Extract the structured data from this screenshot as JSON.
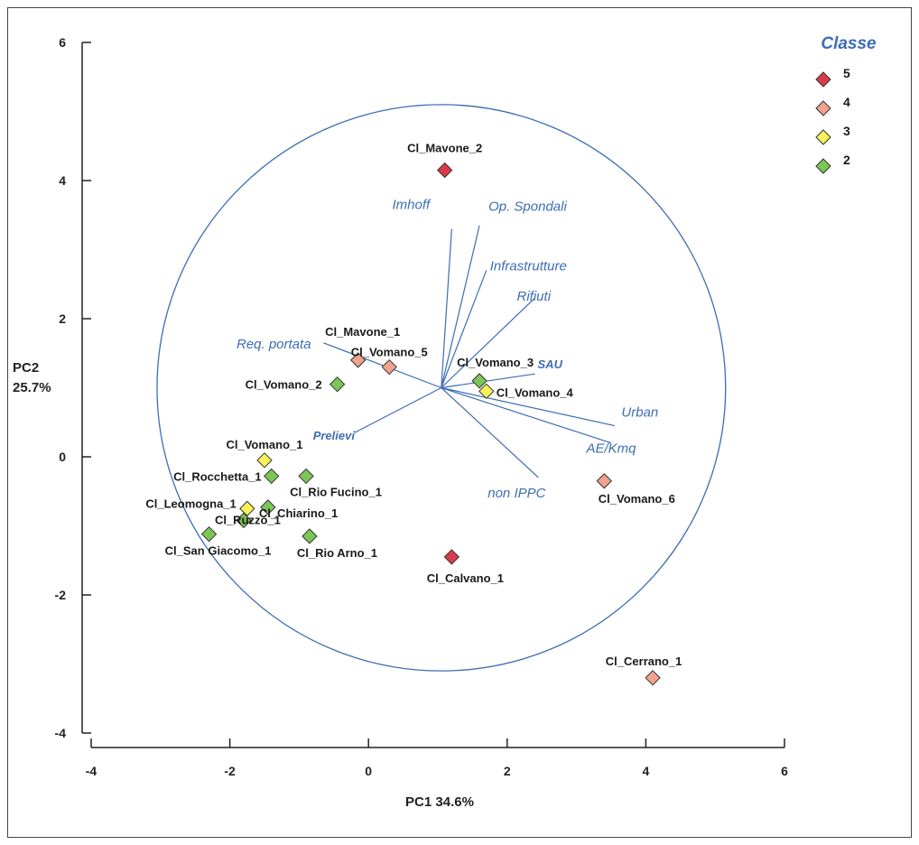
{
  "chart_data": {
    "type": "scatter",
    "title": "",
    "xlabel": "PC1 34.6%",
    "ylabel_line1": "PC2",
    "ylabel_line2": "25.7%",
    "xlim": [
      -4,
      6
    ],
    "ylim": [
      -4,
      6
    ],
    "xticks": [
      -4,
      -2,
      0,
      2,
      4,
      6
    ],
    "yticks": [
      -4,
      -2,
      0,
      2,
      4,
      6
    ],
    "grid": false,
    "legend": {
      "title": "Classe",
      "placement": "top-right",
      "entries": [
        {
          "label": "5",
          "color": "#d93a4c"
        },
        {
          "label": "4",
          "color": "#f1a18e"
        },
        {
          "label": "3",
          "color": "#f7f25a"
        },
        {
          "label": "2",
          "color": "#7cc655"
        }
      ]
    },
    "correlation_circle": {
      "center": [
        1.05,
        1.0
      ],
      "radius": 4.1
    },
    "points": [
      {
        "name": "Cl_Mavone_2",
        "x": 1.1,
        "y": 4.15,
        "classe": "5"
      },
      {
        "name": "Cl_Calvano_1",
        "x": 1.2,
        "y": -1.45,
        "classe": "5"
      },
      {
        "name": "Cl_Mavone_1",
        "x": -0.15,
        "y": 1.4,
        "classe": "4"
      },
      {
        "name": "Cl_Vomano_5",
        "x": 0.3,
        "y": 1.3,
        "classe": "4"
      },
      {
        "name": "Cl_Vomano_6",
        "x": 3.4,
        "y": -0.35,
        "classe": "4"
      },
      {
        "name": "Cl_Cerrano_1",
        "x": 4.1,
        "y": -3.2,
        "classe": "4"
      },
      {
        "name": "Cl_Vomano_4",
        "x": 1.7,
        "y": 0.95,
        "classe": "3"
      },
      {
        "name": "Cl_Vomano_1",
        "x": -1.5,
        "y": -0.05,
        "classe": "3"
      },
      {
        "name": "Cl_Leomogna_1",
        "x": -1.75,
        "y": -0.75,
        "classe": "3"
      },
      {
        "name": "Cl_Vomano_3",
        "x": 1.6,
        "y": 1.1,
        "classe": "2"
      },
      {
        "name": "Cl_Vomano_2",
        "x": -0.45,
        "y": 1.05,
        "classe": "2"
      },
      {
        "name": "Cl_Rocchetta_1",
        "x": -1.4,
        "y": -0.28,
        "classe": "2"
      },
      {
        "name": "Cl_Rio Fucino_1",
        "x": -0.9,
        "y": -0.28,
        "classe": "2"
      },
      {
        "name": "Cl_Chiarino_1",
        "x": -1.45,
        "y": -0.73,
        "classe": "2"
      },
      {
        "name": "Cl_Ruzzo_1",
        "x": -1.8,
        "y": -0.92,
        "classe": "2"
      },
      {
        "name": "Cl_San Giacomo_1",
        "x": -2.3,
        "y": -1.12,
        "classe": "2"
      },
      {
        "name": "Cl_Rio Arno_1",
        "x": -0.85,
        "y": -1.15,
        "classe": "2"
      }
    ],
    "loadings": [
      {
        "name": "Imhoff",
        "x": 1.2,
        "y": 3.3
      },
      {
        "name": "Op. Spondali",
        "x": 1.6,
        "y": 3.35
      },
      {
        "name": "Infrastrutture",
        "x": 1.7,
        "y": 2.7
      },
      {
        "name": "Rifiuti",
        "x": 2.4,
        "y": 2.3
      },
      {
        "name": "Req. portata",
        "x": -0.65,
        "y": 1.65
      },
      {
        "name": "SAU",
        "x": 2.4,
        "y": 1.2
      },
      {
        "name": "Urban",
        "x": 3.55,
        "y": 0.45
      },
      {
        "name": "AE/Kmq",
        "x": 3.5,
        "y": 0.2
      },
      {
        "name": "Prelievi",
        "x": -0.2,
        "y": 0.35
      },
      {
        "name": "non IPPC",
        "x": 2.45,
        "y": -0.3
      }
    ]
  }
}
